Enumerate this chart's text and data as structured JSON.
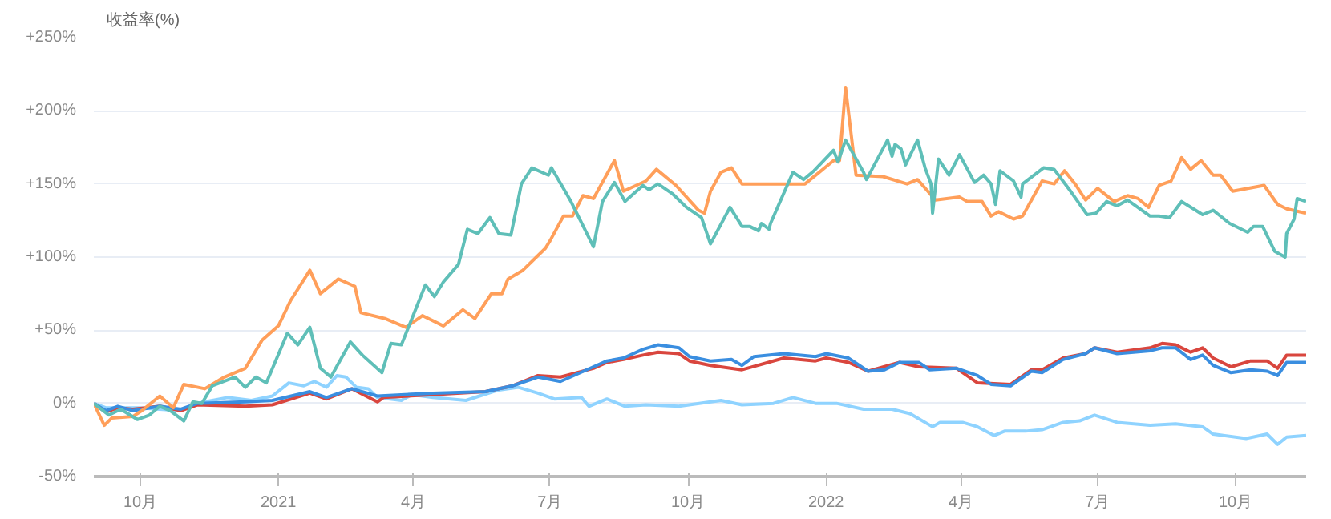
{
  "chart_data": {
    "type": "line",
    "ylabel": "收益率(%)",
    "xlim": [
      "2020-08-31",
      "2022-11-17"
    ],
    "xticks": [
      {
        "value": "2020-10-01",
        "label": "10月"
      },
      {
        "value": "2021-01-01",
        "label": "2021"
      },
      {
        "value": "2021-04-01",
        "label": "4月"
      },
      {
        "value": "2021-07-01",
        "label": "7月"
      },
      {
        "value": "2021-10-01",
        "label": "10月"
      },
      {
        "value": "2022-01-01",
        "label": "2022"
      },
      {
        "value": "2022-04-01",
        "label": "4月"
      },
      {
        "value": "2022-07-01",
        "label": "7月"
      },
      {
        "value": "2022-10-01",
        "label": "10月"
      }
    ],
    "ylim": [
      -50,
      250
    ],
    "yticks": [
      {
        "value": -50,
        "label": "-50%"
      },
      {
        "value": 0,
        "label": "0%"
      },
      {
        "value": 50,
        "label": "+50%"
      },
      {
        "value": 100,
        "label": "+100%"
      },
      {
        "value": 150,
        "label": "+150%"
      },
      {
        "value": 200,
        "label": "+200%"
      },
      {
        "value": 250,
        "label": "+250%"
      }
    ],
    "grid": "y",
    "marker": "none",
    "line_style": "solid",
    "series": [
      {
        "color": "#8fd3ff",
        "x": [
          "2020-08-31",
          "2020-09-08",
          "2020-09-30",
          "2020-10-28",
          "2020-11-08",
          "2020-11-28",
          "2020-12-14",
          "2020-12-28",
          "2021-01-08",
          "2021-01-18",
          "2021-01-25",
          "2021-02-02",
          "2021-02-09",
          "2021-02-15",
          "2021-02-22",
          "2021-03-02",
          "2021-03-08",
          "2021-03-24",
          "2021-03-31",
          "2021-04-14",
          "2021-05-06",
          "2021-05-27",
          "2021-06-10",
          "2021-06-23",
          "2021-07-04",
          "2021-07-22",
          "2021-07-27",
          "2021-08-08",
          "2021-08-20",
          "2021-09-03",
          "2021-09-25",
          "2021-10-23",
          "2021-11-06",
          "2021-11-27",
          "2021-12-10",
          "2021-12-25",
          "2022-01-08",
          "2022-01-26",
          "2022-02-14",
          "2022-02-26",
          "2022-03-13",
          "2022-03-18",
          "2022-04-02",
          "2022-04-12",
          "2022-04-23",
          "2022-04-30",
          "2022-05-14",
          "2022-05-25",
          "2022-06-08",
          "2022-06-19",
          "2022-06-29",
          "2022-07-14",
          "2022-08-05",
          "2022-08-22",
          "2022-09-09",
          "2022-09-16",
          "2022-10-08",
          "2022-10-22",
          "2022-10-29",
          "2022-11-04",
          "2022-11-17"
        ],
        "values": [
          0,
          -3,
          -3,
          -5,
          0,
          4,
          2,
          5,
          14,
          12,
          15,
          11,
          19,
          18,
          11,
          10,
          4,
          2,
          6,
          4,
          2,
          9,
          11,
          7,
          3,
          4,
          -2,
          3,
          -2,
          -1,
          -2,
          2,
          -1,
          0,
          4,
          0,
          0,
          -4,
          -4,
          -7,
          -16,
          -13,
          -13,
          -16,
          -22,
          -19,
          -19,
          -18,
          -13,
          -12,
          -8,
          -13,
          -15,
          -14,
          -16,
          -21,
          -24,
          -21,
          -28,
          -23,
          -22
        ]
      },
      {
        "color": "#d9463e",
        "x": [
          "2020-08-31",
          "2020-09-08",
          "2020-09-16",
          "2020-09-26",
          "2020-10-14",
          "2020-10-28",
          "2020-11-08",
          "2020-12-10",
          "2020-12-28",
          "2021-01-22",
          "2021-02-02",
          "2021-02-19",
          "2021-03-08",
          "2021-03-12",
          "2021-04-14",
          "2021-05-19",
          "2021-06-06",
          "2021-06-23",
          "2021-07-08",
          "2021-07-30",
          "2021-08-08",
          "2021-08-19",
          "2021-09-01",
          "2021-09-11",
          "2021-09-25",
          "2021-10-02",
          "2021-10-16",
          "2021-11-06",
          "2021-12-04",
          "2021-12-25",
          "2022-01-01",
          "2022-01-16",
          "2022-01-29",
          "2022-02-19",
          "2022-03-04",
          "2022-03-29",
          "2022-04-12",
          "2022-05-04",
          "2022-05-18",
          "2022-05-25",
          "2022-06-08",
          "2022-06-23",
          "2022-06-29",
          "2022-07-14",
          "2022-08-05",
          "2022-08-13",
          "2022-08-22",
          "2022-09-01",
          "2022-09-09",
          "2022-09-16",
          "2022-09-28",
          "2022-10-11",
          "2022-10-22",
          "2022-10-29",
          "2022-11-04",
          "2022-11-17"
        ],
        "values": [
          0,
          -6,
          -3,
          -4,
          -2,
          -5,
          -1,
          -2,
          -1,
          7,
          3,
          10,
          1,
          4,
          6,
          8,
          12,
          19,
          18,
          24,
          28,
          30,
          33,
          35,
          34,
          29,
          26,
          23,
          31,
          29,
          31,
          28,
          22,
          28,
          25,
          24,
          14,
          13,
          23,
          23,
          31,
          34,
          38,
          35,
          38,
          41,
          40,
          35,
          38,
          31,
          25,
          29,
          29,
          24,
          33,
          33
        ]
      },
      {
        "color": "#3a8ee0",
        "x": [
          "2020-08-31",
          "2020-09-08",
          "2020-09-16",
          "2020-09-26",
          "2020-10-14",
          "2020-10-28",
          "2020-11-08",
          "2020-12-10",
          "2020-12-28",
          "2021-01-22",
          "2021-02-02",
          "2021-02-19",
          "2021-03-08",
          "2021-04-14",
          "2021-05-19",
          "2021-06-06",
          "2021-06-23",
          "2021-07-08",
          "2021-07-30",
          "2021-08-08",
          "2021-08-19",
          "2021-09-01",
          "2021-09-11",
          "2021-09-25",
          "2021-10-02",
          "2021-10-16",
          "2021-10-30",
          "2021-11-06",
          "2021-11-14",
          "2021-12-04",
          "2021-12-25",
          "2022-01-01",
          "2022-01-16",
          "2022-01-29",
          "2022-02-09",
          "2022-02-19",
          "2022-03-04",
          "2022-03-11",
          "2022-03-29",
          "2022-04-12",
          "2022-04-21",
          "2022-05-04",
          "2022-05-18",
          "2022-05-25",
          "2022-06-08",
          "2022-06-23",
          "2022-06-29",
          "2022-07-14",
          "2022-08-05",
          "2022-08-13",
          "2022-08-22",
          "2022-09-01",
          "2022-09-09",
          "2022-09-16",
          "2022-09-28",
          "2022-10-11",
          "2022-10-22",
          "2022-10-29",
          "2022-11-04",
          "2022-11-17"
        ],
        "values": [
          0,
          -5,
          -2,
          -5,
          -2,
          -4,
          0,
          1,
          2,
          8,
          4,
          10,
          5,
          7,
          8,
          12,
          18,
          15,
          25,
          29,
          31,
          37,
          40,
          38,
          32,
          29,
          30,
          26,
          32,
          34,
          32,
          34,
          31,
          22,
          23,
          28,
          28,
          23,
          24,
          19,
          13,
          12,
          22,
          21,
          30,
          34,
          38,
          34,
          36,
          38,
          38,
          30,
          33,
          26,
          21,
          23,
          22,
          19,
          28,
          28
        ]
      },
      {
        "color": "#ff9f5a",
        "x": [
          "2020-08-31",
          "2020-09-07",
          "2020-09-12",
          "2020-09-26",
          "2020-10-02",
          "2020-10-14",
          "2020-10-23",
          "2020-10-30",
          "2020-11-13",
          "2020-11-26",
          "2020-12-10",
          "2020-12-21",
          "2021-01-01",
          "2021-01-09",
          "2021-01-22",
          "2021-01-29",
          "2021-02-10",
          "2021-02-21",
          "2021-02-25",
          "2021-03-13",
          "2021-03-27",
          "2021-04-07",
          "2021-04-21",
          "2021-05-04",
          "2021-05-12",
          "2021-05-23",
          "2021-05-30",
          "2021-06-03",
          "2021-06-13",
          "2021-06-28",
          "2021-07-01",
          "2021-07-10",
          "2021-07-16",
          "2021-07-23",
          "2021-07-30",
          "2021-08-13",
          "2021-08-19",
          "2021-09-03",
          "2021-09-10",
          "2021-09-23",
          "2021-10-08",
          "2021-10-12",
          "2021-10-16",
          "2021-10-23",
          "2021-10-30",
          "2021-11-06",
          "2021-11-24",
          "2021-12-18",
          "2022-01-06",
          "2022-01-10",
          "2022-01-14",
          "2022-01-21",
          "2022-02-08",
          "2022-02-24",
          "2022-03-03",
          "2022-03-15",
          "2022-03-31",
          "2022-04-05",
          "2022-04-15",
          "2022-04-21",
          "2022-04-26",
          "2022-05-06",
          "2022-05-12",
          "2022-05-25",
          "2022-06-02",
          "2022-06-09",
          "2022-06-16",
          "2022-06-23",
          "2022-07-01",
          "2022-07-12",
          "2022-07-21",
          "2022-07-28",
          "2022-08-04",
          "2022-08-11",
          "2022-08-19",
          "2022-08-26",
          "2022-09-01",
          "2022-09-08",
          "2022-09-16",
          "2022-09-21",
          "2022-09-29",
          "2022-10-20",
          "2022-10-29",
          "2022-11-04",
          "2022-11-17"
        ],
        "values": [
          0,
          -15,
          -10,
          -9,
          -5,
          5,
          -3,
          13,
          10,
          18,
          24,
          43,
          53,
          70,
          91,
          75,
          85,
          80,
          62,
          58,
          52,
          60,
          53,
          64,
          58,
          75,
          75,
          85,
          91,
          106,
          111,
          128,
          128,
          142,
          140,
          166,
          145,
          152,
          160,
          149,
          132,
          130,
          145,
          158,
          161,
          150,
          150,
          150,
          166,
          166,
          216,
          156,
          155,
          150,
          153,
          139,
          141,
          138,
          138,
          128,
          131,
          126,
          128,
          152,
          150,
          159,
          150,
          139,
          147,
          138,
          142,
          140,
          134,
          149,
          152,
          168,
          160,
          166,
          156,
          156,
          145,
          149,
          136,
          133,
          130
        ]
      },
      {
        "color": "#5fbfb8",
        "x": [
          "2020-08-31",
          "2020-09-10",
          "2020-09-18",
          "2020-09-29",
          "2020-10-07",
          "2020-10-14",
          "2020-10-21",
          "2020-10-30",
          "2020-11-05",
          "2020-11-11",
          "2020-11-18",
          "2020-12-03",
          "2020-12-10",
          "2020-12-17",
          "2020-12-24",
          "2021-01-07",
          "2021-01-14",
          "2021-01-22",
          "2021-01-29",
          "2021-02-05",
          "2021-02-18",
          "2021-02-26",
          "2021-03-11",
          "2021-03-17",
          "2021-03-24",
          "2021-04-09",
          "2021-04-15",
          "2021-04-21",
          "2021-05-01",
          "2021-05-07",
          "2021-05-14",
          "2021-05-22",
          "2021-05-28",
          "2021-06-05",
          "2021-06-12",
          "2021-06-19",
          "2021-06-30",
          "2021-07-02",
          "2021-07-10",
          "2021-07-15",
          "2021-07-30",
          "2021-08-05",
          "2021-08-13",
          "2021-08-20",
          "2021-09-01",
          "2021-09-05",
          "2021-09-11",
          "2021-09-21",
          "2021-09-30",
          "2021-10-10",
          "2021-10-16",
          "2021-10-29",
          "2021-11-06",
          "2021-11-11",
          "2021-11-17",
          "2021-11-19",
          "2021-11-24",
          "2021-11-25",
          "2021-12-10",
          "2021-12-17",
          "2021-12-24",
          "2022-01-06",
          "2022-01-09",
          "2022-01-14",
          "2022-01-26",
          "2022-01-28",
          "2022-02-11",
          "2022-02-14",
          "2022-02-16",
          "2022-02-20",
          "2022-02-23",
          "2022-03-03",
          "2022-03-08",
          "2022-03-12",
          "2022-03-13",
          "2022-03-17",
          "2022-03-24",
          "2022-03-31",
          "2022-04-10",
          "2022-04-16",
          "2022-04-21",
          "2022-04-24",
          "2022-04-27",
          "2022-05-06",
          "2022-05-11",
          "2022-05-12",
          "2022-05-26",
          "2022-06-02",
          "2022-06-13",
          "2022-06-24",
          "2022-06-30",
          "2022-07-07",
          "2022-07-14",
          "2022-07-21",
          "2022-08-05",
          "2022-08-11",
          "2022-08-18",
          "2022-08-26",
          "2022-09-09",
          "2022-09-16",
          "2022-09-27",
          "2022-10-09",
          "2022-10-13",
          "2022-10-19",
          "2022-10-27",
          "2022-11-03",
          "2022-11-04",
          "2022-11-09",
          "2022-11-11",
          "2022-11-17"
        ],
        "values": [
          0,
          -8,
          -4,
          -11,
          -8,
          -2,
          -5,
          -12,
          1,
          0,
          12,
          18,
          11,
          18,
          14,
          48,
          40,
          52,
          24,
          18,
          42,
          33,
          21,
          41,
          40,
          81,
          73,
          83,
          95,
          119,
          116,
          127,
          116,
          115,
          150,
          161,
          156,
          161,
          147,
          138,
          107,
          138,
          151,
          138,
          149,
          146,
          150,
          143,
          134,
          127,
          109,
          134,
          121,
          121,
          118,
          123,
          119,
          123,
          158,
          153,
          159,
          173,
          165,
          180,
          158,
          153,
          180,
          169,
          177,
          174,
          163,
          180,
          161,
          150,
          130,
          167,
          156,
          170,
          151,
          156,
          150,
          136,
          159,
          152,
          141,
          150,
          161,
          160,
          145,
          129,
          130,
          138,
          135,
          139,
          128,
          128,
          127,
          138,
          129,
          132,
          123,
          117,
          121,
          121,
          104,
          100,
          116,
          126,
          140,
          138
        ]
      }
    ]
  }
}
